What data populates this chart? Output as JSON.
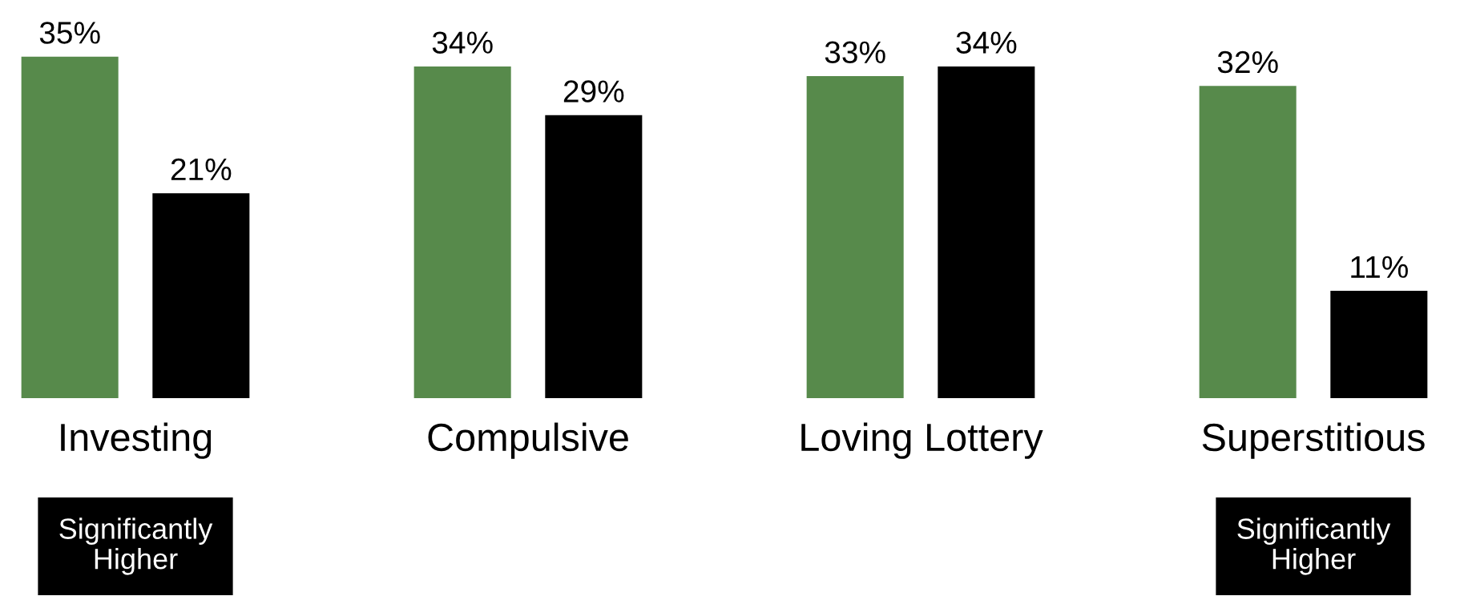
{
  "chart_data": {
    "type": "bar",
    "categories": [
      "Investing",
      "Compulsive",
      "Loving Lottery",
      "Superstitious"
    ],
    "series": [
      {
        "color": "#578a4b",
        "values": [
          35,
          34,
          33,
          32
        ],
        "value_labels": [
          "35%",
          "34%",
          "33%",
          "32%"
        ]
      },
      {
        "color": "#000000",
        "values": [
          21,
          29,
          34,
          11
        ],
        "value_labels": [
          "21%",
          "29%",
          "34%",
          "11%"
        ]
      }
    ],
    "annotations": [
      "Significantly\nHigher",
      "Significantly\nHigher"
    ],
    "grid": false
  }
}
